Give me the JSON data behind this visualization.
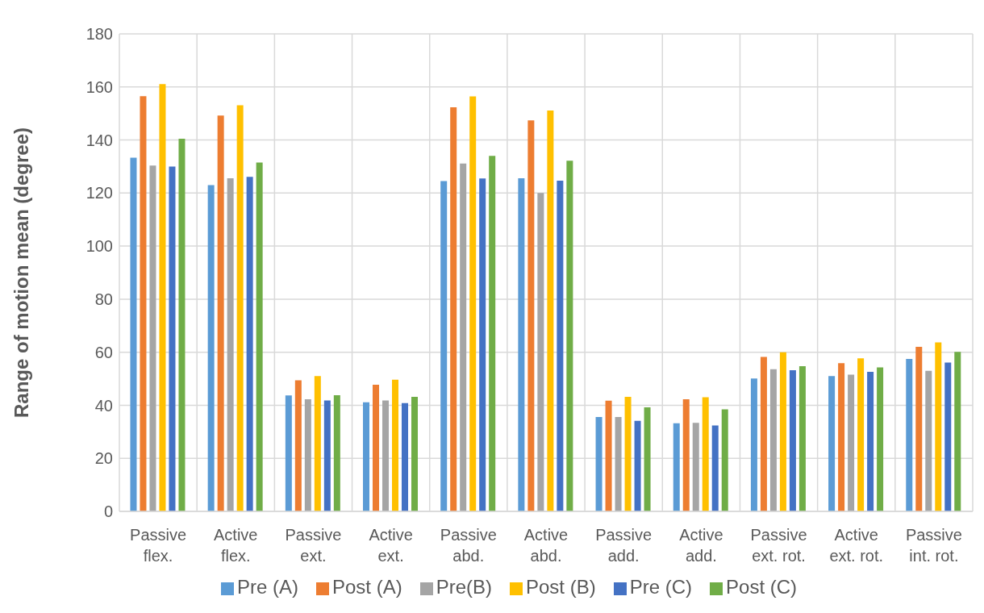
{
  "chart_data": {
    "type": "bar",
    "ylabel": "Range  of motion mean (degree)",
    "categories": [
      "Passive flex.",
      "Active flex.",
      "Passive ext.",
      "Active ext.",
      "Passive abd.",
      "Active abd.",
      "Passive add.",
      "Active add.",
      "Passive ext. rot.",
      "Active ext. rot.",
      "Passive int. rot."
    ],
    "series": [
      {
        "name": "Pre (A)",
        "color": "#5b9bd5",
        "values": [
          133.3,
          123.0,
          43.7,
          41.1,
          124.5,
          125.6,
          35.6,
          33.2,
          50.1,
          51.0,
          57.5
        ]
      },
      {
        "name": "Post (A)",
        "color": "#ed7d31",
        "values": [
          156.5,
          149.2,
          49.4,
          47.7,
          152.3,
          147.4,
          41.7,
          42.3,
          58.2,
          55.9,
          62.0
        ]
      },
      {
        "name": "Pre(B)",
        "color": "#a5a5a5",
        "values": [
          130.4,
          125.6,
          42.3,
          41.8,
          131.1,
          120.0,
          35.6,
          33.4,
          53.6,
          51.5,
          53.0
        ]
      },
      {
        "name": "Post (B)",
        "color": "#ffc000",
        "values": [
          161.1,
          153.1,
          51.0,
          49.6,
          156.4,
          151.1,
          43.2,
          43.0,
          60.0,
          57.7,
          63.7
        ]
      },
      {
        "name": "Pre (C)",
        "color": "#4472c4",
        "values": [
          130.0,
          126.1,
          41.8,
          40.8,
          125.5,
          124.7,
          34.1,
          32.4,
          53.2,
          52.6,
          56.1
        ]
      },
      {
        "name": "Post (C)",
        "color": "#70ad47",
        "values": [
          140.5,
          131.5,
          43.8,
          43.2,
          134.0,
          132.2,
          39.2,
          38.5,
          54.7,
          54.3,
          60.1
        ]
      }
    ],
    "ylim": [
      0,
      180
    ],
    "yticks": [
      0,
      20,
      40,
      60,
      80,
      100,
      120,
      140,
      160,
      180
    ],
    "grid": true,
    "legend": "bottom"
  }
}
